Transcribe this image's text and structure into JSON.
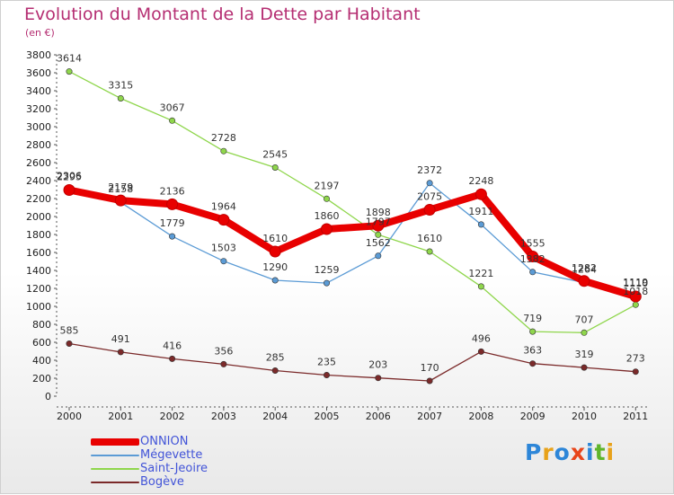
{
  "title": "Evolution du Montant de la Dette par Habitant",
  "unit": "(en €)",
  "logo": {
    "text": "Proxiti",
    "letter_colors": [
      "#2d86d8",
      "#e8a21a",
      "#2d86d8",
      "#e8451a",
      "#2d86d8",
      "#5fb52c",
      "#e8a21a"
    ]
  },
  "chart_data": {
    "type": "line",
    "title": "Evolution du Montant de la Dette par Habitant",
    "ylabel": "(en €)",
    "xlabel": "",
    "x": [
      "2000",
      "2001",
      "2002",
      "2003",
      "2004",
      "2005",
      "2006",
      "2007",
      "2008",
      "2009",
      "2010",
      "2011"
    ],
    "ylim": [
      0,
      3800
    ],
    "yticks": [
      0,
      200,
      400,
      600,
      800,
      1000,
      1200,
      1400,
      1600,
      1800,
      2000,
      2200,
      2400,
      2600,
      2800,
      3000,
      3200,
      3400,
      3600,
      3800
    ],
    "grid": false,
    "legend_position": "bottom-left",
    "series": [
      {
        "name": "ONNION",
        "color": "#e80000",
        "width": 8,
        "values": [
          2295,
          2179,
          2136,
          1964,
          1610,
          1860,
          1898,
          2075,
          2248,
          1555,
          1282,
          1110
        ]
      },
      {
        "name": "Mégevette",
        "color": "#5b9bd5",
        "width": 1.3,
        "values": [
          2306,
          2158,
          1779,
          1503,
          1290,
          1259,
          1562,
          2372,
          1911,
          1382,
          1264,
          1119
        ]
      },
      {
        "name": "Saint-Jeoire",
        "color": "#8fd64c",
        "width": 1.3,
        "values": [
          3614,
          3315,
          3067,
          2728,
          2545,
          2197,
          1797,
          1610,
          1221,
          719,
          707,
          1018
        ]
      },
      {
        "name": "Bogève",
        "color": "#7b2a2a",
        "width": 1.3,
        "values": [
          585,
          491,
          416,
          356,
          285,
          235,
          203,
          170,
          496,
          363,
          319,
          273
        ]
      }
    ],
    "labels": [
      {
        "series": 0,
        "text": [
          "2295",
          "2179",
          "2136",
          "1964",
          "1610",
          "1860",
          "1898",
          "2075",
          "2248",
          "1555",
          "1282",
          "1110"
        ]
      },
      {
        "series": 1,
        "text": [
          "2306",
          "2158",
          "1779",
          "1503",
          "1290",
          "1259",
          "1562",
          "2372",
          "1911",
          "1382",
          "1264",
          "1119"
        ]
      },
      {
        "series": 2,
        "text": [
          "3614",
          "3315",
          "3067",
          "2728",
          "2545",
          "2197",
          "1797",
          "1610",
          "1221",
          "719",
          "707",
          "1018"
        ]
      },
      {
        "series": 3,
        "text": [
          "585",
          "491",
          "416",
          "356",
          "285",
          "235",
          "203",
          "170",
          "496",
          "363",
          "319",
          "273"
        ]
      }
    ]
  }
}
